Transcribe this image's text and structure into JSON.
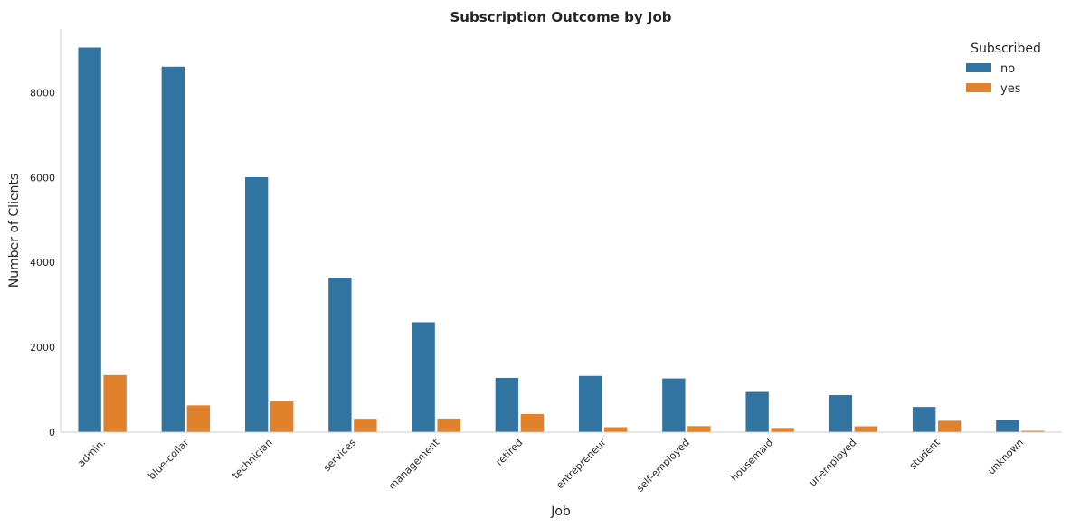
{
  "chart_data": {
    "type": "bar",
    "title": "Subscription Outcome by Job",
    "xlabel": "Job",
    "ylabel": "Number of Clients",
    "categories": [
      "admin.",
      "blue-collar",
      "technician",
      "services",
      "management",
      "retired",
      "entrepreneur",
      "self-employed",
      "housemaid",
      "unemployed",
      "student",
      "unknown"
    ],
    "series": [
      {
        "name": "no",
        "color": "#3274a1",
        "values": [
          9070,
          8616,
          6013,
          3646,
          2596,
          1286,
          1332,
          1272,
          954,
          879,
          600,
          293
        ]
      },
      {
        "name": "yes",
        "color": "#e1812c",
        "values": [
          1352,
          638,
          730,
          323,
          328,
          434,
          124,
          149,
          106,
          144,
          275,
          37
        ]
      }
    ],
    "yticks": [
      0,
      2000,
      4000,
      6000,
      8000
    ],
    "ylim": [
      0,
      9500
    ],
    "legend": {
      "title": "Subscribed",
      "position": "top-right"
    },
    "grid": false
  }
}
